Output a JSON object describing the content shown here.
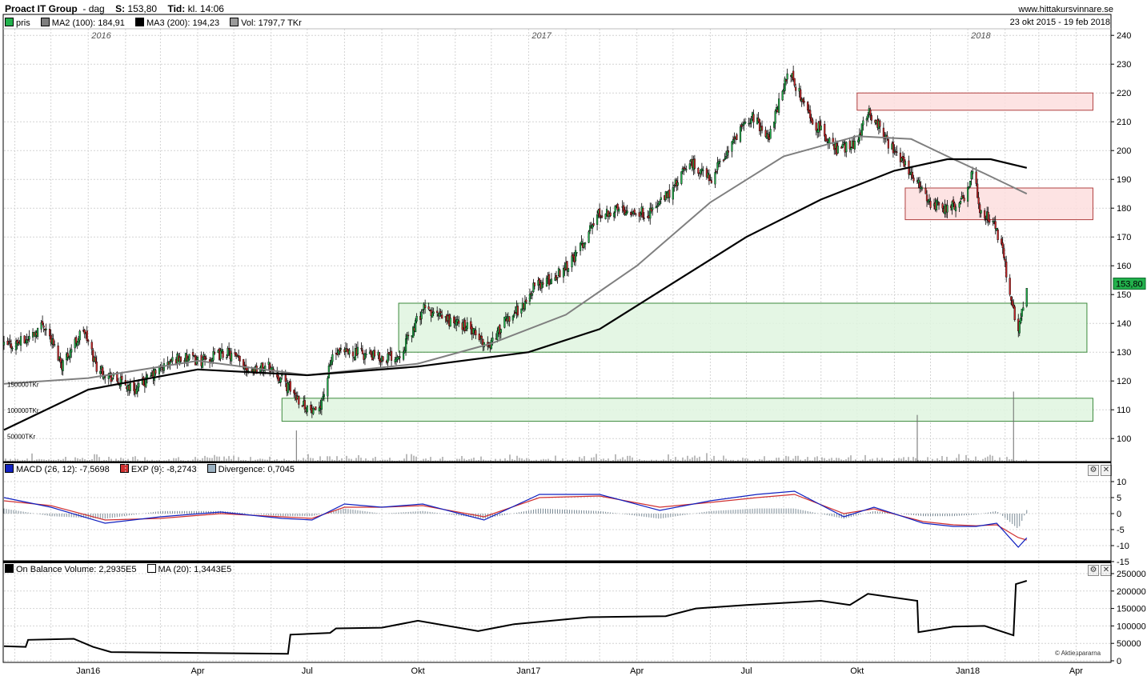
{
  "header": {
    "title": "Proact IT Group",
    "period": "dag",
    "last_label": "S:",
    "last_value": "153,80",
    "time_label": "Tid:",
    "time_value": "kl. 14:06",
    "site": "www.hittakursvinnare.se",
    "date_range": "23 okt 2015 - 19 feb 2018"
  },
  "legend": {
    "price": "pris",
    "ma2": "MA2 (100): 184,91",
    "ma3": "MA3 (200): 194,23",
    "vol": "Vol: 1797,7 TKr",
    "macd": "MACD (26, 12): -7,5698",
    "exp": "EXP (9): -8,2743",
    "div": "Divergence: 0,7045",
    "obv": "On Balance Volume: 2,2935E5",
    "obv_ma": "MA (20): 1,3443E5"
  },
  "colors": {
    "up": "#22b14c",
    "down": "#c8282a",
    "ma100": "#7f7f7f",
    "ma200": "#000000",
    "macd": "#1020c0",
    "exp": "#d03030",
    "green_zone_fill": "#dff5df",
    "green_zone_stroke": "#3c8a3c",
    "red_zone_fill": "#fddede",
    "red_zone_stroke": "#b04040",
    "price_tag": "#22b14c"
  },
  "price_tag": "153,80",
  "credit": "© Aktiespararna",
  "chart_data": [
    {
      "type": "candlestick",
      "title": "Proact IT Group",
      "ylim": [
        92,
        242
      ],
      "y_ticks": [
        100,
        110,
        120,
        130,
        140,
        150,
        160,
        170,
        180,
        190,
        200,
        210,
        220,
        230,
        240
      ],
      "year_labels": [
        "2016",
        "2017",
        "2018"
      ],
      "x_labels": [
        "Jan16",
        "Apr",
        "Jul",
        "Okt",
        "Jan17",
        "Apr",
        "Jul",
        "Okt",
        "Jan18",
        "Apr"
      ],
      "price_path": [
        {
          "date": "2015-10-23",
          "close": 132
        },
        {
          "date": "2015-11-10",
          "close": 134
        },
        {
          "date": "2015-11-25",
          "close": 140
        },
        {
          "date": "2015-12-10",
          "close": 126
        },
        {
          "date": "2015-12-28",
          "close": 138
        },
        {
          "date": "2016-01-08",
          "close": 125
        },
        {
          "date": "2016-01-25",
          "close": 120
        },
        {
          "date": "2016-02-10",
          "close": 117
        },
        {
          "date": "2016-02-29",
          "close": 124
        },
        {
          "date": "2016-03-15",
          "close": 128
        },
        {
          "date": "2016-04-05",
          "close": 127
        },
        {
          "date": "2016-04-25",
          "close": 130
        },
        {
          "date": "2016-05-15",
          "close": 124
        },
        {
          "date": "2016-05-31",
          "close": 125
        },
        {
          "date": "2016-06-15",
          "close": 118
        },
        {
          "date": "2016-06-28",
          "close": 112
        },
        {
          "date": "2016-07-08",
          "close": 108
        },
        {
          "date": "2016-07-15",
          "close": 116
        },
        {
          "date": "2016-07-22",
          "close": 129
        },
        {
          "date": "2016-08-10",
          "close": 130
        },
        {
          "date": "2016-08-31",
          "close": 128
        },
        {
          "date": "2016-09-15",
          "close": 129
        },
        {
          "date": "2016-09-26",
          "close": 137
        },
        {
          "date": "2016-10-05",
          "close": 145
        },
        {
          "date": "2016-10-20",
          "close": 142
        },
        {
          "date": "2016-11-10",
          "close": 139
        },
        {
          "date": "2016-11-28",
          "close": 132
        },
        {
          "date": "2016-12-15",
          "close": 142
        },
        {
          "date": "2016-12-30",
          "close": 147
        },
        {
          "date": "2017-01-05",
          "close": 153
        },
        {
          "date": "2017-01-20",
          "close": 155
        },
        {
          "date": "2017-02-10",
          "close": 164
        },
        {
          "date": "2017-02-28",
          "close": 178
        },
        {
          "date": "2017-03-20",
          "close": 180
        },
        {
          "date": "2017-04-10",
          "close": 178
        },
        {
          "date": "2017-04-28",
          "close": 185
        },
        {
          "date": "2017-05-15",
          "close": 196
        },
        {
          "date": "2017-06-01",
          "close": 190
        },
        {
          "date": "2017-06-20",
          "close": 203
        },
        {
          "date": "2017-07-05",
          "close": 212
        },
        {
          "date": "2017-07-20",
          "close": 205
        },
        {
          "date": "2017-08-05",
          "close": 228
        },
        {
          "date": "2017-08-25",
          "close": 210
        },
        {
          "date": "2017-09-15",
          "close": 200
        },
        {
          "date": "2017-09-30",
          "close": 203
        },
        {
          "date": "2017-10-10",
          "close": 214
        },
        {
          "date": "2017-10-20",
          "close": 208
        },
        {
          "date": "2017-11-01",
          "close": 199
        },
        {
          "date": "2017-11-15",
          "close": 192
        },
        {
          "date": "2017-12-01",
          "close": 182
        },
        {
          "date": "2017-12-15",
          "close": 180
        },
        {
          "date": "2017-12-29",
          "close": 183
        },
        {
          "date": "2018-01-05",
          "close": 193
        },
        {
          "date": "2018-01-12",
          "close": 178
        },
        {
          "date": "2018-01-22",
          "close": 176
        },
        {
          "date": "2018-01-30",
          "close": 165
        },
        {
          "date": "2018-02-05",
          "close": 150
        },
        {
          "date": "2018-02-12",
          "close": 138
        },
        {
          "date": "2018-02-19",
          "close": 153.8
        }
      ],
      "ma100_path": [
        {
          "date": "2015-10-23",
          "value": 119
        },
        {
          "date": "2016-01-01",
          "value": 121
        },
        {
          "date": "2016-04-01",
          "value": 127
        },
        {
          "date": "2016-07-01",
          "value": 122
        },
        {
          "date": "2016-10-01",
          "value": 126
        },
        {
          "date": "2016-12-01",
          "value": 133
        },
        {
          "date": "2017-02-01",
          "value": 143
        },
        {
          "date": "2017-04-01",
          "value": 160
        },
        {
          "date": "2017-06-01",
          "value": 182
        },
        {
          "date": "2017-08-01",
          "value": 198
        },
        {
          "date": "2017-10-01",
          "value": 205
        },
        {
          "date": "2017-11-15",
          "value": 204
        },
        {
          "date": "2017-12-15",
          "value": 198
        },
        {
          "date": "2018-01-15",
          "value": 192
        },
        {
          "date": "2018-02-19",
          "value": 185
        }
      ],
      "ma200_path": [
        {
          "date": "2015-10-23",
          "value": 103
        },
        {
          "date": "2016-01-01",
          "value": 117
        },
        {
          "date": "2016-04-01",
          "value": 124
        },
        {
          "date": "2016-07-01",
          "value": 122
        },
        {
          "date": "2016-10-01",
          "value": 125
        },
        {
          "date": "2017-01-01",
          "value": 130
        },
        {
          "date": "2017-03-01",
          "value": 138
        },
        {
          "date": "2017-05-01",
          "value": 154
        },
        {
          "date": "2017-07-01",
          "value": 170
        },
        {
          "date": "2017-09-01",
          "value": 183
        },
        {
          "date": "2017-11-01",
          "value": 193
        },
        {
          "date": "2017-12-15",
          "value": 197
        },
        {
          "date": "2018-01-20",
          "value": 197
        },
        {
          "date": "2018-02-19",
          "value": 194
        }
      ],
      "zones": [
        {
          "kind": "resistance",
          "from": "2017-10-01",
          "to": "2018-04-15",
          "low": 214,
          "high": 220
        },
        {
          "kind": "resistance",
          "from": "2017-11-10",
          "to": "2018-04-15",
          "low": 176,
          "high": 187
        },
        {
          "kind": "support",
          "from": "2016-09-15",
          "to": "2018-04-10",
          "low": 130,
          "high": 147
        },
        {
          "kind": "support",
          "from": "2016-06-10",
          "to": "2018-04-15",
          "low": 106,
          "high": 114
        }
      ],
      "volume_ticks": [
        "150000TKr",
        "100000TKr",
        "50000TKr"
      ],
      "volume_spikes": [
        {
          "date": "2016-06-22",
          "value": 60000
        },
        {
          "date": "2017-11-20",
          "value": 90000
        },
        {
          "date": "2018-02-08",
          "value": 135000
        }
      ]
    },
    {
      "type": "line",
      "title": "MACD (26, 12)",
      "ylim": [
        -15,
        12
      ],
      "y_ticks": [
        10,
        5,
        0,
        -5,
        -10,
        -15
      ],
      "series": [
        {
          "name": "MACD (26, 12)",
          "path": [
            {
              "date": "2015-10-23",
              "value": 5
            },
            {
              "date": "2015-12-01",
              "value": 2
            },
            {
              "date": "2016-01-15",
              "value": -3
            },
            {
              "date": "2016-03-01",
              "value": -1
            },
            {
              "date": "2016-04-20",
              "value": 0.5
            },
            {
              "date": "2016-06-10",
              "value": -1.5
            },
            {
              "date": "2016-07-05",
              "value": -2
            },
            {
              "date": "2016-08-01",
              "value": 3
            },
            {
              "date": "2016-09-01",
              "value": 2
            },
            {
              "date": "2016-10-05",
              "value": 3
            },
            {
              "date": "2016-11-25",
              "value": -2
            },
            {
              "date": "2017-01-10",
              "value": 6
            },
            {
              "date": "2017-03-01",
              "value": 6
            },
            {
              "date": "2017-04-20",
              "value": 1
            },
            {
              "date": "2017-06-01",
              "value": 4
            },
            {
              "date": "2017-07-10",
              "value": 6
            },
            {
              "date": "2017-08-10",
              "value": 7
            },
            {
              "date": "2017-09-20",
              "value": -1
            },
            {
              "date": "2017-10-15",
              "value": 2
            },
            {
              "date": "2017-11-25",
              "value": -3
            },
            {
              "date": "2017-12-20",
              "value": -4
            },
            {
              "date": "2018-01-08",
              "value": -4
            },
            {
              "date": "2018-01-25",
              "value": -3
            },
            {
              "date": "2018-02-12",
              "value": -10.5
            },
            {
              "date": "2018-02-19",
              "value": -7.57
            }
          ]
        },
        {
          "name": "EXP (9)",
          "path": [
            {
              "date": "2015-10-23",
              "value": 4
            },
            {
              "date": "2015-12-01",
              "value": 2.5
            },
            {
              "date": "2016-01-15",
              "value": -2
            },
            {
              "date": "2016-03-01",
              "value": -1.5
            },
            {
              "date": "2016-04-20",
              "value": 0
            },
            {
              "date": "2016-06-10",
              "value": -1
            },
            {
              "date": "2016-07-05",
              "value": -1.5
            },
            {
              "date": "2016-08-01",
              "value": 2
            },
            {
              "date": "2016-09-01",
              "value": 2
            },
            {
              "date": "2016-10-05",
              "value": 2.5
            },
            {
              "date": "2016-11-25",
              "value": -1
            },
            {
              "date": "2017-01-10",
              "value": 5
            },
            {
              "date": "2017-03-01",
              "value": 5.5
            },
            {
              "date": "2017-04-20",
              "value": 2
            },
            {
              "date": "2017-06-01",
              "value": 3.5
            },
            {
              "date": "2017-07-10",
              "value": 5
            },
            {
              "date": "2017-08-10",
              "value": 6
            },
            {
              "date": "2017-09-20",
              "value": 0
            },
            {
              "date": "2017-10-15",
              "value": 1.5
            },
            {
              "date": "2017-11-25",
              "value": -2.5
            },
            {
              "date": "2017-12-20",
              "value": -3.5
            },
            {
              "date": "2018-01-08",
              "value": -3.8
            },
            {
              "date": "2018-01-25",
              "value": -3.5
            },
            {
              "date": "2018-02-12",
              "value": -7.5
            },
            {
              "date": "2018-02-19",
              "value": -8.27
            }
          ]
        }
      ]
    },
    {
      "type": "line",
      "title": "On Balance Volume",
      "ylim": [
        0,
        250000
      ],
      "y_ticks": [
        250000,
        200000,
        150000,
        100000,
        50000,
        0
      ],
      "series": [
        {
          "name": "On Balance Volume",
          "path": [
            {
              "date": "2015-10-23",
              "value": 42000
            },
            {
              "date": "2015-11-10",
              "value": 40000
            },
            {
              "date": "2015-11-12",
              "value": 60000
            },
            {
              "date": "2015-12-20",
              "value": 63000
            },
            {
              "date": "2016-01-05",
              "value": 40000
            },
            {
              "date": "2016-01-20",
              "value": 25000
            },
            {
              "date": "2016-06-15",
              "value": 20000
            },
            {
              "date": "2016-06-17",
              "value": 75000
            },
            {
              "date": "2016-07-20",
              "value": 80000
            },
            {
              "date": "2016-07-25",
              "value": 93000
            },
            {
              "date": "2016-09-01",
              "value": 95000
            },
            {
              "date": "2016-10-01",
              "value": 115000
            },
            {
              "date": "2016-11-20",
              "value": 85000
            },
            {
              "date": "2016-12-20",
              "value": 105000
            },
            {
              "date": "2017-02-20",
              "value": 125000
            },
            {
              "date": "2017-04-25",
              "value": 128000
            },
            {
              "date": "2017-05-20",
              "value": 150000
            },
            {
              "date": "2017-07-01",
              "value": 160000
            },
            {
              "date": "2017-09-01",
              "value": 172000
            },
            {
              "date": "2017-09-25",
              "value": 160000
            },
            {
              "date": "2017-10-10",
              "value": 192000
            },
            {
              "date": "2017-11-20",
              "value": 172000
            },
            {
              "date": "2017-11-21",
              "value": 82000
            },
            {
              "date": "2017-12-20",
              "value": 98000
            },
            {
              "date": "2018-01-15",
              "value": 100000
            },
            {
              "date": "2018-02-08",
              "value": 73000
            },
            {
              "date": "2018-02-10",
              "value": 220000
            },
            {
              "date": "2018-02-19",
              "value": 229350
            }
          ]
        }
      ]
    }
  ]
}
